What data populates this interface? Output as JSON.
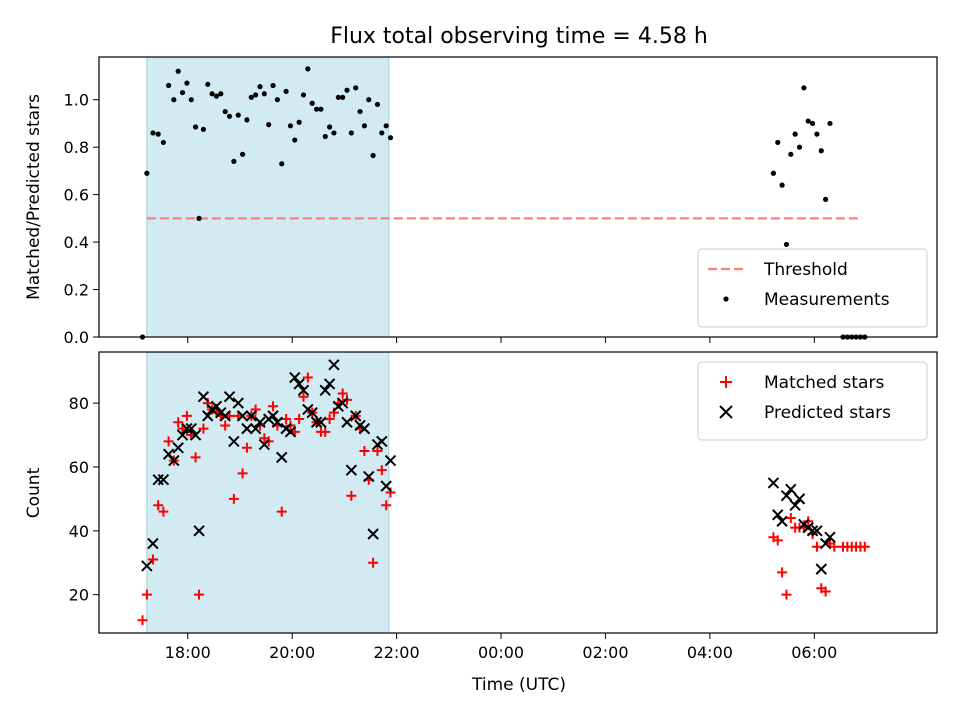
{
  "figure": {
    "title": "Flux total observing time = 4.58 h"
  },
  "chart_data": [
    {
      "type": "scatter",
      "panel": "top",
      "title": "Flux total observing time = 4.58 h",
      "xlabel": "",
      "ylabel": "Matched/Predicted stars",
      "xlim_hours": [
        16.3,
        8.35
      ],
      "ylim": [
        0,
        1.18
      ],
      "x_axis": "time of day (UTC), spans midnight",
      "yticks": [
        "0.0",
        "0.2",
        "0.4",
        "0.6",
        "0.8",
        "1.0"
      ],
      "ytick_values": [
        0.0,
        0.2,
        0.4,
        0.6,
        0.8,
        1.0
      ],
      "observing_window": {
        "start": "17:13",
        "end": "21:51",
        "color": "#add8e6"
      },
      "legend_position": "lower right",
      "threshold": {
        "name": "Threshold",
        "y": 0.5,
        "x_start": "17:13",
        "x_end": "06:55",
        "color": "#ff7f7f",
        "style": "dashed"
      },
      "series": [
        {
          "name": "Measurements",
          "marker": "dot",
          "color": "#000000",
          "points": [
            [
              "17:08",
              0.0
            ],
            [
              "17:13",
              0.69
            ],
            [
              "17:20",
              0.86
            ],
            [
              "17:26",
              0.855
            ],
            [
              "17:32",
              0.82
            ],
            [
              "17:38",
              1.06
            ],
            [
              "17:44",
              1.0
            ],
            [
              "17:49",
              1.12
            ],
            [
              "17:54",
              1.03
            ],
            [
              "17:59",
              1.07
            ],
            [
              "18:04",
              1.0
            ],
            [
              "18:09",
              0.885
            ],
            [
              "18:13",
              0.5
            ],
            [
              "18:18",
              0.875
            ],
            [
              "18:23",
              1.065
            ],
            [
              "18:28",
              1.025
            ],
            [
              "18:33",
              1.015
            ],
            [
              "18:38",
              1.025
            ],
            [
              "18:43",
              0.95
            ],
            [
              "18:48",
              0.93
            ],
            [
              "18:53",
              0.74
            ],
            [
              "18:58",
              0.935
            ],
            [
              "19:03",
              0.77
            ],
            [
              "19:08",
              0.915
            ],
            [
              "19:13",
              1.01
            ],
            [
              "19:18",
              1.02
            ],
            [
              "19:23",
              1.055
            ],
            [
              "19:28",
              1.025
            ],
            [
              "19:33",
              0.895
            ],
            [
              "19:38",
              1.06
            ],
            [
              "19:43",
              1.0
            ],
            [
              "19:48",
              0.73
            ],
            [
              "19:53",
              1.035
            ],
            [
              "19:58",
              0.89
            ],
            [
              "20:03",
              0.83
            ],
            [
              "20:08",
              0.905
            ],
            [
              "20:13",
              1.02
            ],
            [
              "20:18",
              1.13
            ],
            [
              "20:23",
              0.985
            ],
            [
              "20:28",
              0.96
            ],
            [
              "20:33",
              0.96
            ],
            [
              "20:38",
              0.845
            ],
            [
              "20:43",
              0.885
            ],
            [
              "20:48",
              0.86
            ],
            [
              "20:53",
              1.01
            ],
            [
              "20:58",
              1.01
            ],
            [
              "21:03",
              1.04
            ],
            [
              "21:08",
              0.86
            ],
            [
              "21:13",
              1.05
            ],
            [
              "21:18",
              0.95
            ],
            [
              "21:23",
              0.89
            ],
            [
              "21:28",
              1.0
            ],
            [
              "21:33",
              0.765
            ],
            [
              "21:38",
              0.98
            ],
            [
              "21:43",
              0.86
            ],
            [
              "21:48",
              0.89
            ],
            [
              "21:53",
              0.84
            ],
            [
              "05:13",
              0.69
            ],
            [
              "05:18",
              0.82
            ],
            [
              "05:23",
              0.64
            ],
            [
              "05:28",
              0.39
            ],
            [
              "05:33",
              0.77
            ],
            [
              "05:38",
              0.855
            ],
            [
              "05:43",
              0.8
            ],
            [
              "05:48",
              1.05
            ],
            [
              "05:53",
              0.91
            ],
            [
              "05:58",
              0.9
            ],
            [
              "06:03",
              0.855
            ],
            [
              "06:08",
              0.785
            ],
            [
              "06:13",
              0.58
            ],
            [
              "06:18",
              0.9
            ],
            [
              "06:33",
              0.0
            ],
            [
              "06:38",
              0.0
            ],
            [
              "06:43",
              0.0
            ],
            [
              "06:48",
              0.0
            ],
            [
              "06:53",
              0.0
            ],
            [
              "06:58",
              0.0
            ]
          ]
        }
      ]
    },
    {
      "type": "scatter",
      "panel": "bottom",
      "xlabel": "Time (UTC)",
      "ylabel": "Count",
      "xlim_hours": [
        16.3,
        8.35
      ],
      "ylim": [
        8,
        96
      ],
      "xticks": [
        "18:00",
        "20:00",
        "22:00",
        "00:00",
        "02:00",
        "04:00",
        "06:00"
      ],
      "yticks": [
        "20",
        "40",
        "60",
        "80"
      ],
      "ytick_values": [
        20,
        40,
        60,
        80
      ],
      "observing_window": {
        "start": "17:13",
        "end": "21:51",
        "color": "#add8e6"
      },
      "legend_position": "upper right",
      "series": [
        {
          "name": "Matched stars",
          "marker": "plus",
          "color": "#ff0000",
          "points": [
            [
              "17:08",
              12
            ],
            [
              "17:13",
              20
            ],
            [
              "17:20",
              31
            ],
            [
              "17:26",
              48
            ],
            [
              "17:32",
              46
            ],
            [
              "17:38",
              68
            ],
            [
              "17:44",
              62
            ],
            [
              "17:49",
              74
            ],
            [
              "17:54",
              72
            ],
            [
              "17:59",
              76
            ],
            [
              "18:04",
              70
            ],
            [
              "18:09",
              63
            ],
            [
              "18:13",
              20
            ],
            [
              "18:18",
              72
            ],
            [
              "18:23",
              80
            ],
            [
              "18:28",
              78
            ],
            [
              "18:33",
              77
            ],
            [
              "18:38",
              76
            ],
            [
              "18:43",
              73
            ],
            [
              "18:48",
              76
            ],
            [
              "18:53",
              50
            ],
            [
              "18:58",
              76
            ],
            [
              "19:03",
              58
            ],
            [
              "19:08",
              66
            ],
            [
              "19:13",
              76
            ],
            [
              "19:18",
              78
            ],
            [
              "19:23",
              73
            ],
            [
              "19:28",
              69
            ],
            [
              "19:33",
              68
            ],
            [
              "19:38",
              79
            ],
            [
              "19:43",
              73
            ],
            [
              "19:48",
              46
            ],
            [
              "19:53",
              75
            ],
            [
              "19:58",
              73
            ],
            [
              "20:03",
              71
            ],
            [
              "20:08",
              75
            ],
            [
              "20:13",
              82
            ],
            [
              "20:18",
              88
            ],
            [
              "20:23",
              77
            ],
            [
              "20:28",
              74
            ],
            [
              "20:33",
              71
            ],
            [
              "20:38",
              71
            ],
            [
              "20:43",
              75
            ],
            [
              "20:48",
              77
            ],
            [
              "20:53",
              80
            ],
            [
              "20:58",
              83
            ],
            [
              "21:03",
              81
            ],
            [
              "21:08",
              51
            ],
            [
              "21:13",
              76
            ],
            [
              "21:18",
              72
            ],
            [
              "21:23",
              65
            ],
            [
              "21:28",
              56
            ],
            [
              "21:33",
              30
            ],
            [
              "21:38",
              65
            ],
            [
              "21:43",
              59
            ],
            [
              "21:48",
              48
            ],
            [
              "21:53",
              52
            ],
            [
              "05:13",
              38
            ],
            [
              "05:18",
              37
            ],
            [
              "05:23",
              27
            ],
            [
              "05:28",
              20
            ],
            [
              "05:33",
              44
            ],
            [
              "05:38",
              41
            ],
            [
              "05:43",
              41
            ],
            [
              "05:48",
              41
            ],
            [
              "05:53",
              43
            ],
            [
              "05:58",
              39
            ],
            [
              "06:03",
              35
            ],
            [
              "06:08",
              22
            ],
            [
              "06:13",
              21
            ],
            [
              "06:18",
              36
            ],
            [
              "06:23",
              35
            ],
            [
              "06:33",
              35
            ],
            [
              "06:38",
              35
            ],
            [
              "06:43",
              35
            ],
            [
              "06:48",
              35
            ],
            [
              "06:53",
              35
            ],
            [
              "06:58",
              35
            ]
          ]
        },
        {
          "name": "Predicted stars",
          "marker": "x",
          "color": "#000000",
          "points": [
            [
              "17:13",
              29
            ],
            [
              "17:20",
              36
            ],
            [
              "17:26",
              56
            ],
            [
              "17:32",
              56
            ],
            [
              "17:38",
              64
            ],
            [
              "17:44",
              62
            ],
            [
              "17:49",
              66
            ],
            [
              "17:54",
              70
            ],
            [
              "17:59",
              72
            ],
            [
              "18:04",
              72
            ],
            [
              "18:09",
              70
            ],
            [
              "18:13",
              40
            ],
            [
              "18:18",
              82
            ],
            [
              "18:23",
              76
            ],
            [
              "18:28",
              78
            ],
            [
              "18:33",
              79
            ],
            [
              "18:38",
              77
            ],
            [
              "18:43",
              76
            ],
            [
              "18:48",
              82
            ],
            [
              "18:53",
              68
            ],
            [
              "18:58",
              80
            ],
            [
              "19:03",
              76
            ],
            [
              "19:08",
              72
            ],
            [
              "19:13",
              76
            ],
            [
              "19:18",
              72
            ],
            [
              "19:23",
              74
            ],
            [
              "19:28",
              67
            ],
            [
              "19:33",
              75
            ],
            [
              "19:38",
              76
            ],
            [
              "19:43",
              74
            ],
            [
              "19:48",
              63
            ],
            [
              "19:53",
              72
            ],
            [
              "19:58",
              71
            ],
            [
              "20:03",
              88
            ],
            [
              "20:08",
              86
            ],
            [
              "20:13",
              84
            ],
            [
              "20:18",
              78
            ],
            [
              "20:23",
              77
            ],
            [
              "20:28",
              74
            ],
            [
              "20:33",
              74
            ],
            [
              "20:38",
              84
            ],
            [
              "20:43",
              86
            ],
            [
              "20:48",
              92
            ],
            [
              "20:53",
              79
            ],
            [
              "20:58",
              80
            ],
            [
              "21:03",
              74
            ],
            [
              "21:08",
              59
            ],
            [
              "21:13",
              76
            ],
            [
              "21:18",
              73
            ],
            [
              "21:23",
              72
            ],
            [
              "21:28",
              57
            ],
            [
              "21:33",
              39
            ],
            [
              "21:38",
              67
            ],
            [
              "21:43",
              68
            ],
            [
              "21:48",
              54
            ],
            [
              "21:53",
              62
            ],
            [
              "05:13",
              55
            ],
            [
              "05:18",
              45
            ],
            [
              "05:23",
              43
            ],
            [
              "05:28",
              51
            ],
            [
              "05:33",
              53
            ],
            [
              "05:38",
              48
            ],
            [
              "05:43",
              50
            ],
            [
              "05:48",
              42
            ],
            [
              "05:53",
              41
            ],
            [
              "05:58",
              40
            ],
            [
              "06:03",
              40
            ],
            [
              "06:08",
              28
            ],
            [
              "06:13",
              36
            ],
            [
              "06:18",
              38
            ]
          ]
        }
      ]
    }
  ]
}
